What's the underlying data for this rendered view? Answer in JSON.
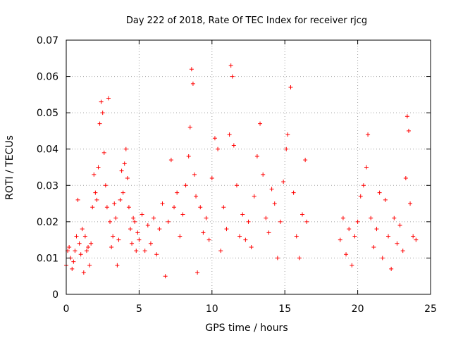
{
  "chart_data": {
    "type": "scatter",
    "title": "Day 222 of 2018, Rate Of TEC Index for receiver rjcg",
    "xlabel": "GPS time / hours",
    "ylabel": "ROTI / TECUs",
    "xlim": [
      0,
      25
    ],
    "ylim": [
      0,
      0.07
    ],
    "xticks": [
      0,
      5,
      10,
      15,
      20,
      25
    ],
    "xtick_labels": [
      "0",
      "5",
      "10",
      "15",
      "20",
      "25"
    ],
    "yticks": [
      0,
      0.01,
      0.02,
      0.03,
      0.04,
      0.05,
      0.06,
      0.07
    ],
    "ytick_labels": [
      "0",
      "0.01",
      "0.02",
      "0.03",
      "0.04",
      "0.05",
      "0.06",
      "0.07"
    ],
    "grid": true,
    "marker": "+",
    "color": "#ff0000",
    "series": [
      {
        "name": "ROTI",
        "points": [
          [
            0.0,
            0.008
          ],
          [
            0.1,
            0.012
          ],
          [
            0.2,
            0.013
          ],
          [
            0.3,
            0.01
          ],
          [
            0.4,
            0.007
          ],
          [
            0.5,
            0.009
          ],
          [
            0.6,
            0.012
          ],
          [
            0.7,
            0.016
          ],
          [
            0.8,
            0.026
          ],
          [
            0.9,
            0.014
          ],
          [
            1.0,
            0.011
          ],
          [
            1.1,
            0.018
          ],
          [
            1.2,
            0.006
          ],
          [
            1.3,
            0.016
          ],
          [
            1.4,
            0.012
          ],
          [
            1.5,
            0.013
          ],
          [
            1.6,
            0.008
          ],
          [
            1.7,
            0.014
          ],
          [
            1.8,
            0.024
          ],
          [
            1.9,
            0.033
          ],
          [
            2.0,
            0.028
          ],
          [
            2.1,
            0.026
          ],
          [
            2.2,
            0.035
          ],
          [
            2.3,
            0.047
          ],
          [
            2.4,
            0.053
          ],
          [
            2.5,
            0.05
          ],
          [
            2.6,
            0.039
          ],
          [
            2.7,
            0.03
          ],
          [
            2.8,
            0.024
          ],
          [
            2.9,
            0.054
          ],
          [
            3.0,
            0.02
          ],
          [
            3.1,
            0.013
          ],
          [
            3.2,
            0.016
          ],
          [
            3.3,
            0.025
          ],
          [
            3.4,
            0.021
          ],
          [
            3.5,
            0.008
          ],
          [
            3.6,
            0.015
          ],
          [
            3.7,
            0.026
          ],
          [
            3.8,
            0.034
          ],
          [
            3.9,
            0.028
          ],
          [
            4.0,
            0.036
          ],
          [
            4.1,
            0.04
          ],
          [
            4.2,
            0.032
          ],
          [
            4.3,
            0.024
          ],
          [
            4.4,
            0.018
          ],
          [
            4.5,
            0.014
          ],
          [
            4.6,
            0.021
          ],
          [
            4.7,
            0.02
          ],
          [
            4.8,
            0.012
          ],
          [
            4.9,
            0.017
          ],
          [
            5.0,
            0.015
          ],
          [
            5.2,
            0.022
          ],
          [
            5.4,
            0.012
          ],
          [
            5.6,
            0.019
          ],
          [
            5.8,
            0.014
          ],
          [
            6.0,
            0.021
          ],
          [
            6.2,
            0.011
          ],
          [
            6.4,
            0.018
          ],
          [
            6.6,
            0.025
          ],
          [
            6.8,
            0.005
          ],
          [
            7.0,
            0.02
          ],
          [
            7.2,
            0.037
          ],
          [
            7.4,
            0.024
          ],
          [
            7.6,
            0.028
          ],
          [
            7.8,
            0.016
          ],
          [
            8.0,
            0.022
          ],
          [
            8.2,
            0.03
          ],
          [
            8.4,
            0.038
          ],
          [
            8.5,
            0.046
          ],
          [
            8.6,
            0.062
          ],
          [
            8.7,
            0.058
          ],
          [
            8.8,
            0.033
          ],
          [
            8.9,
            0.027
          ],
          [
            9.0,
            0.006
          ],
          [
            9.2,
            0.024
          ],
          [
            9.4,
            0.017
          ],
          [
            9.6,
            0.021
          ],
          [
            9.8,
            0.015
          ],
          [
            10.0,
            0.032
          ],
          [
            10.2,
            0.043
          ],
          [
            10.4,
            0.04
          ],
          [
            10.6,
            0.012
          ],
          [
            10.8,
            0.024
          ],
          [
            11.0,
            0.018
          ],
          [
            11.2,
            0.044
          ],
          [
            11.3,
            0.063
          ],
          [
            11.4,
            0.06
          ],
          [
            11.5,
            0.041
          ],
          [
            11.7,
            0.03
          ],
          [
            11.9,
            0.016
          ],
          [
            12.1,
            0.022
          ],
          [
            12.3,
            0.015
          ],
          [
            12.5,
            0.02
          ],
          [
            12.7,
            0.013
          ],
          [
            12.9,
            0.027
          ],
          [
            13.1,
            0.038
          ],
          [
            13.3,
            0.047
          ],
          [
            13.5,
            0.033
          ],
          [
            13.7,
            0.021
          ],
          [
            13.9,
            0.017
          ],
          [
            14.1,
            0.029
          ],
          [
            14.3,
            0.025
          ],
          [
            14.5,
            0.01
          ],
          [
            14.7,
            0.02
          ],
          [
            14.9,
            0.031
          ],
          [
            15.1,
            0.04
          ],
          [
            15.2,
            0.044
          ],
          [
            15.4,
            0.057
          ],
          [
            15.6,
            0.028
          ],
          [
            15.8,
            0.016
          ],
          [
            16.0,
            0.01
          ],
          [
            16.2,
            0.022
          ],
          [
            16.4,
            0.037
          ],
          [
            16.5,
            0.02
          ],
          [
            18.8,
            0.015
          ],
          [
            19.0,
            0.021
          ],
          [
            19.2,
            0.011
          ],
          [
            19.4,
            0.018
          ],
          [
            19.6,
            0.008
          ],
          [
            19.8,
            0.016
          ],
          [
            20.0,
            0.02
          ],
          [
            20.2,
            0.027
          ],
          [
            20.4,
            0.03
          ],
          [
            20.6,
            0.035
          ],
          [
            20.7,
            0.044
          ],
          [
            20.9,
            0.021
          ],
          [
            21.1,
            0.013
          ],
          [
            21.3,
            0.018
          ],
          [
            21.5,
            0.028
          ],
          [
            21.7,
            0.01
          ],
          [
            21.9,
            0.026
          ],
          [
            22.1,
            0.016
          ],
          [
            22.3,
            0.007
          ],
          [
            22.5,
            0.021
          ],
          [
            22.7,
            0.014
          ],
          [
            22.9,
            0.019
          ],
          [
            23.1,
            0.012
          ],
          [
            23.3,
            0.032
          ],
          [
            23.4,
            0.049
          ],
          [
            23.5,
            0.045
          ],
          [
            23.6,
            0.025
          ],
          [
            23.8,
            0.016
          ],
          [
            24.0,
            0.015
          ]
        ]
      }
    ]
  }
}
